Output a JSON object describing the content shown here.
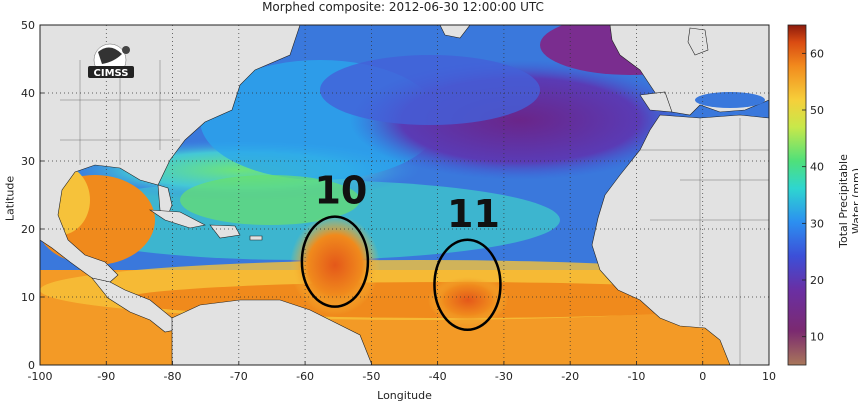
{
  "map": {
    "title": "Morphed composite: 2012-06-30 12:00:00 UTC",
    "xlabel": "Longitude",
    "ylabel": "Latitude",
    "x_ticks": [
      "-100",
      "-90",
      "-80",
      "-70",
      "-60",
      "-50",
      "-40",
      "-30",
      "-20",
      "-10",
      "0",
      "10"
    ],
    "y_ticks": [
      "0",
      "10",
      "20",
      "30",
      "40",
      "50"
    ],
    "colorbar": {
      "label": "Total Precipitable Water (mm)",
      "ticks": [
        "10",
        "20",
        "30",
        "40",
        "50",
        "60"
      ],
      "range": [
        5,
        65
      ]
    },
    "logo": {
      "text": "CIMSS"
    },
    "annotations": [
      {
        "label": "10",
        "lon": -55.5,
        "lat": 15.2
      },
      {
        "label": "11",
        "lon": -35.5,
        "lat": 11.8
      }
    ],
    "colors": {
      "land": "#e2e2e2",
      "ocean_low": "#7a2d8f",
      "ocean_mid": "#3a72d8",
      "ocean_high": "#f08a1c"
    }
  }
}
